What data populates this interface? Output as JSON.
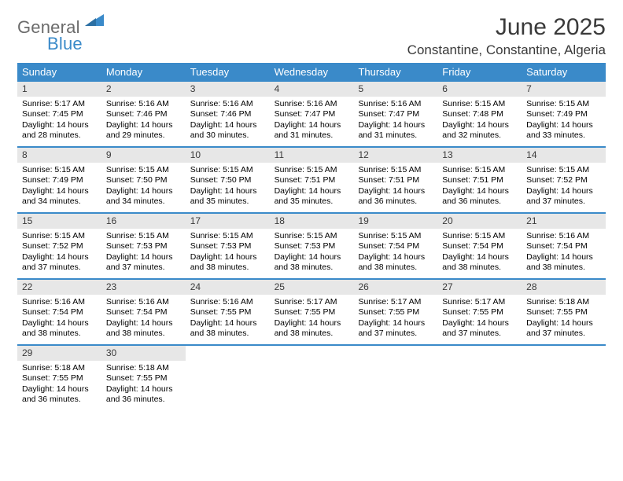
{
  "brand": {
    "general": "General",
    "blue": "Blue"
  },
  "title": "June 2025",
  "location": "Constantine, Constantine, Algeria",
  "colors": {
    "accent": "#3a8ac9",
    "daynum_bg": "#e7e7e7",
    "text": "#000000"
  },
  "day_headers": [
    "Sunday",
    "Monday",
    "Tuesday",
    "Wednesday",
    "Thursday",
    "Friday",
    "Saturday"
  ],
  "weeks": [
    [
      {
        "n": "1",
        "sunrise": "Sunrise: 5:17 AM",
        "sunset": "Sunset: 7:45 PM",
        "day1": "Daylight: 14 hours",
        "day2": "and 28 minutes."
      },
      {
        "n": "2",
        "sunrise": "Sunrise: 5:16 AM",
        "sunset": "Sunset: 7:46 PM",
        "day1": "Daylight: 14 hours",
        "day2": "and 29 minutes."
      },
      {
        "n": "3",
        "sunrise": "Sunrise: 5:16 AM",
        "sunset": "Sunset: 7:46 PM",
        "day1": "Daylight: 14 hours",
        "day2": "and 30 minutes."
      },
      {
        "n": "4",
        "sunrise": "Sunrise: 5:16 AM",
        "sunset": "Sunset: 7:47 PM",
        "day1": "Daylight: 14 hours",
        "day2": "and 31 minutes."
      },
      {
        "n": "5",
        "sunrise": "Sunrise: 5:16 AM",
        "sunset": "Sunset: 7:47 PM",
        "day1": "Daylight: 14 hours",
        "day2": "and 31 minutes."
      },
      {
        "n": "6",
        "sunrise": "Sunrise: 5:15 AM",
        "sunset": "Sunset: 7:48 PM",
        "day1": "Daylight: 14 hours",
        "day2": "and 32 minutes."
      },
      {
        "n": "7",
        "sunrise": "Sunrise: 5:15 AM",
        "sunset": "Sunset: 7:49 PM",
        "day1": "Daylight: 14 hours",
        "day2": "and 33 minutes."
      }
    ],
    [
      {
        "n": "8",
        "sunrise": "Sunrise: 5:15 AM",
        "sunset": "Sunset: 7:49 PM",
        "day1": "Daylight: 14 hours",
        "day2": "and 34 minutes."
      },
      {
        "n": "9",
        "sunrise": "Sunrise: 5:15 AM",
        "sunset": "Sunset: 7:50 PM",
        "day1": "Daylight: 14 hours",
        "day2": "and 34 minutes."
      },
      {
        "n": "10",
        "sunrise": "Sunrise: 5:15 AM",
        "sunset": "Sunset: 7:50 PM",
        "day1": "Daylight: 14 hours",
        "day2": "and 35 minutes."
      },
      {
        "n": "11",
        "sunrise": "Sunrise: 5:15 AM",
        "sunset": "Sunset: 7:51 PM",
        "day1": "Daylight: 14 hours",
        "day2": "and 35 minutes."
      },
      {
        "n": "12",
        "sunrise": "Sunrise: 5:15 AM",
        "sunset": "Sunset: 7:51 PM",
        "day1": "Daylight: 14 hours",
        "day2": "and 36 minutes."
      },
      {
        "n": "13",
        "sunrise": "Sunrise: 5:15 AM",
        "sunset": "Sunset: 7:51 PM",
        "day1": "Daylight: 14 hours",
        "day2": "and 36 minutes."
      },
      {
        "n": "14",
        "sunrise": "Sunrise: 5:15 AM",
        "sunset": "Sunset: 7:52 PM",
        "day1": "Daylight: 14 hours",
        "day2": "and 37 minutes."
      }
    ],
    [
      {
        "n": "15",
        "sunrise": "Sunrise: 5:15 AM",
        "sunset": "Sunset: 7:52 PM",
        "day1": "Daylight: 14 hours",
        "day2": "and 37 minutes."
      },
      {
        "n": "16",
        "sunrise": "Sunrise: 5:15 AM",
        "sunset": "Sunset: 7:53 PM",
        "day1": "Daylight: 14 hours",
        "day2": "and 37 minutes."
      },
      {
        "n": "17",
        "sunrise": "Sunrise: 5:15 AM",
        "sunset": "Sunset: 7:53 PM",
        "day1": "Daylight: 14 hours",
        "day2": "and 38 minutes."
      },
      {
        "n": "18",
        "sunrise": "Sunrise: 5:15 AM",
        "sunset": "Sunset: 7:53 PM",
        "day1": "Daylight: 14 hours",
        "day2": "and 38 minutes."
      },
      {
        "n": "19",
        "sunrise": "Sunrise: 5:15 AM",
        "sunset": "Sunset: 7:54 PM",
        "day1": "Daylight: 14 hours",
        "day2": "and 38 minutes."
      },
      {
        "n": "20",
        "sunrise": "Sunrise: 5:15 AM",
        "sunset": "Sunset: 7:54 PM",
        "day1": "Daylight: 14 hours",
        "day2": "and 38 minutes."
      },
      {
        "n": "21",
        "sunrise": "Sunrise: 5:16 AM",
        "sunset": "Sunset: 7:54 PM",
        "day1": "Daylight: 14 hours",
        "day2": "and 38 minutes."
      }
    ],
    [
      {
        "n": "22",
        "sunrise": "Sunrise: 5:16 AM",
        "sunset": "Sunset: 7:54 PM",
        "day1": "Daylight: 14 hours",
        "day2": "and 38 minutes."
      },
      {
        "n": "23",
        "sunrise": "Sunrise: 5:16 AM",
        "sunset": "Sunset: 7:54 PM",
        "day1": "Daylight: 14 hours",
        "day2": "and 38 minutes."
      },
      {
        "n": "24",
        "sunrise": "Sunrise: 5:16 AM",
        "sunset": "Sunset: 7:55 PM",
        "day1": "Daylight: 14 hours",
        "day2": "and 38 minutes."
      },
      {
        "n": "25",
        "sunrise": "Sunrise: 5:17 AM",
        "sunset": "Sunset: 7:55 PM",
        "day1": "Daylight: 14 hours",
        "day2": "and 38 minutes."
      },
      {
        "n": "26",
        "sunrise": "Sunrise: 5:17 AM",
        "sunset": "Sunset: 7:55 PM",
        "day1": "Daylight: 14 hours",
        "day2": "and 37 minutes."
      },
      {
        "n": "27",
        "sunrise": "Sunrise: 5:17 AM",
        "sunset": "Sunset: 7:55 PM",
        "day1": "Daylight: 14 hours",
        "day2": "and 37 minutes."
      },
      {
        "n": "28",
        "sunrise": "Sunrise: 5:18 AM",
        "sunset": "Sunset: 7:55 PM",
        "day1": "Daylight: 14 hours",
        "day2": "and 37 minutes."
      }
    ],
    [
      {
        "n": "29",
        "sunrise": "Sunrise: 5:18 AM",
        "sunset": "Sunset: 7:55 PM",
        "day1": "Daylight: 14 hours",
        "day2": "and 36 minutes."
      },
      {
        "n": "30",
        "sunrise": "Sunrise: 5:18 AM",
        "sunset": "Sunset: 7:55 PM",
        "day1": "Daylight: 14 hours",
        "day2": "and 36 minutes."
      },
      null,
      null,
      null,
      null,
      null
    ]
  ]
}
